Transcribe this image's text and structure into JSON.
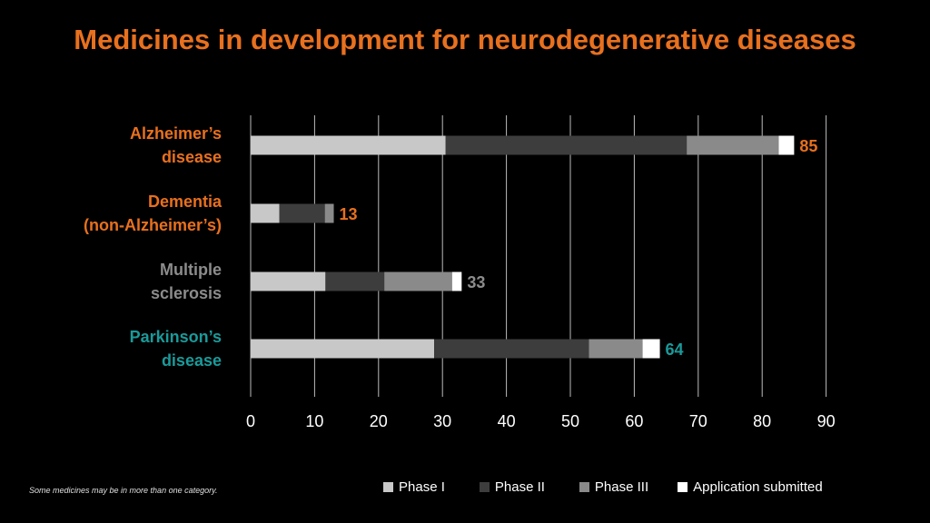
{
  "title": "Medicines in development for neurodegenerative diseases",
  "footnote": "Some medicines may be in more than one category.",
  "colors": {
    "title": "#e8701e",
    "phase1": "#c8c8c8",
    "phase2": "#3d3d3d",
    "phase3": "#8a8a8a",
    "submitted": "#ffffff",
    "grid": "#bdbdbd",
    "tick_label": "#ffffff"
  },
  "chart_data": {
    "type": "bar",
    "orientation": "horizontal",
    "stacked": true,
    "title": "Medicines in development for neurodegenerative diseases",
    "categories": [
      {
        "lines": [
          "Alzheimer’s",
          "disease"
        ],
        "total": 85,
        "color": "#e8701e"
      },
      {
        "lines": [
          "Dementia",
          "(non-Alzheimer’s)"
        ],
        "total": 13,
        "color": "#e8701e"
      },
      {
        "lines": [
          "Multiple",
          "sclerosis"
        ],
        "total": 33,
        "color": "#8c8c8c"
      },
      {
        "lines": [
          "Parkinson’s",
          "disease"
        ],
        "total": 64,
        "color": "#1a9a9a"
      }
    ],
    "series": [
      {
        "name": "Phase I",
        "color": "#c8c8c8",
        "values": [
          30.5,
          4.5,
          11.7,
          28.7
        ]
      },
      {
        "name": "Phase II",
        "color": "#3d3d3d",
        "values": [
          37.7,
          7.1,
          9.2,
          24.2
        ]
      },
      {
        "name": "Phase III",
        "color": "#8a8a8a",
        "values": [
          14.4,
          1.4,
          10.6,
          8.4
        ]
      },
      {
        "name": "Application submitted",
        "color": "#ffffff",
        "values": [
          2.4,
          0,
          1.5,
          2.7
        ]
      }
    ],
    "xlim": [
      0,
      90
    ],
    "xticks": [
      0,
      10,
      20,
      30,
      40,
      50,
      60,
      70,
      80,
      90
    ],
    "grid": true,
    "legend_position": "bottom"
  }
}
